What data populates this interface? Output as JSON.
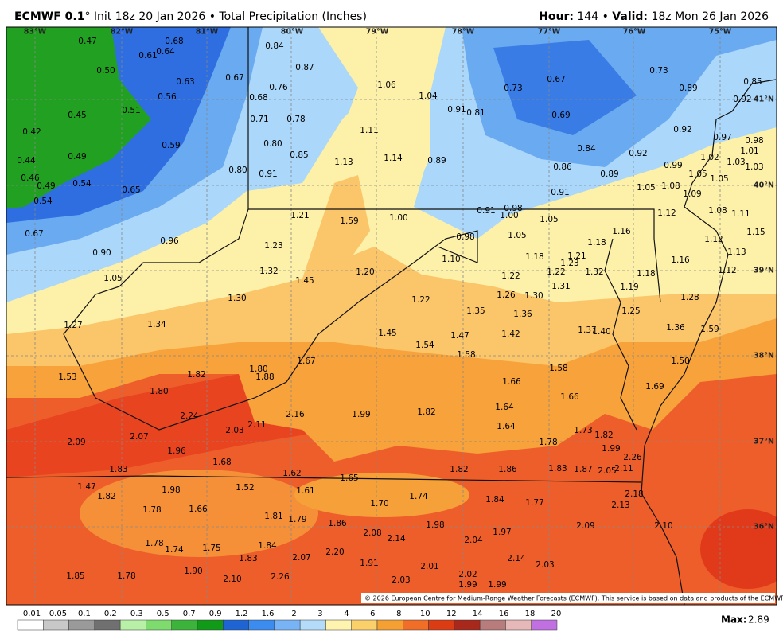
{
  "header": {
    "model": "ECMWF 0.1",
    "details": "° Init 18z 20 Jan 2026 • Total Precipitation (Inches)",
    "hour_label": "Hour:",
    "hour": " 144 • ",
    "valid_label": "Valid:",
    "valid": " 18z Mon 26 Jan 2026"
  },
  "map": {
    "longitudes": [
      "83°W",
      "82°W",
      "81°W",
      "80°W",
      "79°W",
      "78°W",
      "77°W",
      "76°W",
      "75°W"
    ],
    "latitudes": [
      "41°N",
      "40°N",
      "39°N",
      "38°N",
      "37°N",
      "36°N"
    ],
    "labels": [
      "0.47",
      "0.68",
      "0.61",
      "0.64",
      "0.84",
      "0.87",
      "0.50",
      "0.67",
      "0.63",
      "1.06",
      "0.76",
      "0.68",
      "1.04",
      "0.73",
      "0.67",
      "0.73",
      "0.85",
      "0.89",
      "0.92",
      "0.56",
      "0.45",
      "0.51",
      "0.91",
      "0.81",
      "0.69",
      "0.71",
      "0.78",
      "0.42",
      "1.11",
      "0.92",
      "0.97",
      "0.98",
      "0.59",
      "0.80",
      "0.85",
      "0.84",
      "0.92",
      "1.01",
      "1.02",
      "0.44",
      "0.49",
      "1.13",
      "1.14",
      "0.89",
      "0.86",
      "0.99",
      "1.03",
      "1.03",
      "0.46",
      "0.49",
      "0.54",
      "0.80",
      "0.91",
      "0.89",
      "1.05",
      "1.05",
      "0.65",
      "1.05",
      "1.08",
      "0.91",
      "1.09",
      "0.54",
      "1.21",
      "1.59",
      "1.00",
      "0.91",
      "0.98",
      "1.00",
      "1.05",
      "1.12",
      "1.08",
      "1.11",
      "0.67",
      "0.96",
      "0.98",
      "1.05",
      "1.15",
      "1.12",
      "1.16",
      "0.90",
      "1.23",
      "1.10",
      "1.18",
      "1.21",
      "1.18",
      "1.13",
      "1.16",
      "1.23",
      "1.32",
      "1.20",
      "1.22",
      "1.22",
      "1.32",
      "1.18",
      "1.12",
      "1.05",
      "1.45",
      "1.31",
      "1.19",
      "1.30",
      "1.22",
      "1.26",
      "1.30",
      "1.28",
      "1.35",
      "1.36",
      "1.25",
      "1.34",
      "1.27",
      "1.45",
      "1.47",
      "1.42",
      "1.37",
      "1.40",
      "1.36",
      "1.59",
      "1.54",
      "1.58",
      "1.67",
      "1.50",
      "1.80",
      "1.88",
      "1.82",
      "1.53",
      "1.58",
      "1.66",
      "1.69",
      "1.80",
      "1.66",
      "1.99",
      "1.82",
      "1.64",
      "2.16",
      "2.24",
      "2.11",
      "2.03",
      "1.64",
      "1.73",
      "1.82",
      "2.09",
      "2.07",
      "1.78",
      "1.99",
      "1.96",
      "2.26",
      "1.68",
      "1.83",
      "1.82",
      "1.86",
      "1.83",
      "1.87",
      "2.05",
      "2.11",
      "1.62",
      "1.65",
      "1.47",
      "1.98",
      "1.52",
      "1.61",
      "1.74",
      "1.84",
      "1.77",
      "2.18",
      "1.82",
      "1.70",
      "2.13",
      "1.78",
      "1.66",
      "1.81",
      "1.79",
      "1.98",
      "1.86",
      "2.08",
      "2.14",
      "1.97",
      "2.09",
      "2.10",
      "1.78",
      "1.74",
      "1.75",
      "1.84",
      "2.04",
      "2.20",
      "1.83",
      "2.07",
      "1.91",
      "2.14",
      "2.03",
      "2.01",
      "1.85",
      "1.78",
      "1.90",
      "2.26",
      "2.10",
      "2.03",
      "2.02",
      "1.99",
      "1.99"
    ],
    "copyright": "© 2026 European Centre for Medium-Range Weather Forecasts (ECMWF). This service is based on data and products of the ECMWF."
  },
  "legend": {
    "labels": [
      "0.01",
      "0.05",
      "0.1",
      "0.2",
      "0.3",
      "0.5",
      "0.7",
      "0.9",
      "1.2",
      "1.6",
      "2",
      "3",
      "4",
      "6",
      "8",
      "10",
      "12",
      "14",
      "16",
      "18",
      "20"
    ],
    "colors": [
      "#ffffff",
      "#c8c8c8",
      "#9a9a9a",
      "#707070",
      "#b8f0a8",
      "#7edc6e",
      "#3cb43c",
      "#109a18",
      "#1e64d2",
      "#3c8cf0",
      "#78b4f5",
      "#b4dcfa",
      "#fff3b0",
      "#fad06a",
      "#f5a032",
      "#f06e28",
      "#dc3c14",
      "#a8281c",
      "#b87c7c",
      "#e6b8b8",
      "#c070e0"
    ],
    "max_label": "Max:",
    "max": "2.89"
  }
}
